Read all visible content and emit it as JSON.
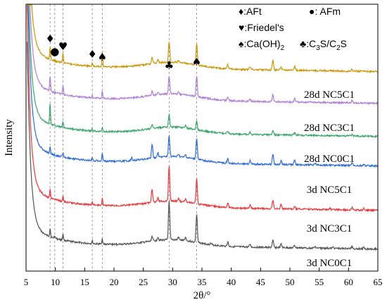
{
  "chart_data": {
    "type": "line",
    "xlabel": "2θ/°",
    "ylabel": "Intensity",
    "xlim": [
      5,
      65
    ],
    "xticks": [
      5,
      10,
      15,
      20,
      25,
      30,
      35,
      40,
      45,
      50,
      55,
      60,
      65
    ],
    "xtick_labels": [
      "5",
      "10",
      "15",
      "20",
      "25",
      "30",
      "35",
      "40",
      "45",
      "50",
      "55",
      "60",
      "65"
    ],
    "reference_lines": [
      9.1,
      9.9,
      11.3,
      16.3,
      18.0,
      29.4,
      34.1
    ],
    "legend": [
      {
        "symbol": "♦",
        "text": ":AFt"
      },
      {
        "symbol": "●",
        "text": ": AFm"
      },
      {
        "symbol": "♥",
        "text": ":Friedel's"
      },
      {
        "symbol": "♠",
        "text": ":Ca(OH)",
        "sub": "2"
      },
      {
        "symbol": "♣",
        "text_parts": [
          ":C",
          "3",
          "S/C",
          "2",
          "S"
        ]
      }
    ],
    "phase_markers": [
      {
        "symbol": "♦",
        "x": 9.1
      },
      {
        "symbol": "●",
        "x": 9.9
      },
      {
        "symbol": "♥",
        "x": 11.3
      },
      {
        "symbol": "♦",
        "x": 16.3
      },
      {
        "symbol": "♠",
        "x": 18.0
      },
      {
        "symbol": "♣",
        "x": 29.4
      },
      {
        "symbol": "♠",
        "x": 34.1
      }
    ],
    "series": [
      {
        "name": "3d NC0C1",
        "color": "#555555",
        "peaks": [
          [
            9.1,
            12
          ],
          [
            9.9,
            4
          ],
          [
            11.3,
            9
          ],
          [
            16.3,
            4
          ],
          [
            18.0,
            8
          ],
          [
            26.5,
            7
          ],
          [
            27.5,
            5
          ],
          [
            29.4,
            55
          ],
          [
            31.0,
            4
          ],
          [
            32.2,
            5
          ],
          [
            34.1,
            40
          ],
          [
            36.5,
            2
          ],
          [
            39.4,
            6
          ],
          [
            43.2,
            4
          ],
          [
            47.1,
            10
          ],
          [
            48.5,
            5
          ],
          [
            50.8,
            3
          ],
          [
            54.3,
            2
          ],
          [
            57.4,
            2
          ],
          [
            60.6,
            3
          ],
          [
            62.6,
            2
          ]
        ]
      },
      {
        "name": "3d NC3C1",
        "color": "#e8393d",
        "peaks": [
          [
            9.1,
            12
          ],
          [
            11.3,
            7
          ],
          [
            16.3,
            4
          ],
          [
            18.0,
            10
          ],
          [
            26.5,
            18
          ],
          [
            27.5,
            6
          ],
          [
            29.4,
            50
          ],
          [
            31.0,
            4
          ],
          [
            32.2,
            5
          ],
          [
            34.1,
            35
          ],
          [
            39.4,
            7
          ],
          [
            43.2,
            5
          ],
          [
            47.1,
            13
          ],
          [
            48.5,
            6
          ],
          [
            50.8,
            4
          ],
          [
            56.8,
            2
          ],
          [
            60.6,
            4
          ],
          [
            62.6,
            2
          ]
        ]
      },
      {
        "name": "3d NC5C1",
        "color": "#2f6bd6",
        "peaks": [
          [
            9.1,
            10
          ],
          [
            11.3,
            6
          ],
          [
            16.3,
            4
          ],
          [
            18.0,
            12
          ],
          [
            23.0,
            4
          ],
          [
            26.5,
            20
          ],
          [
            27.5,
            7
          ],
          [
            29.4,
            30
          ],
          [
            31.0,
            4
          ],
          [
            32.2,
            4
          ],
          [
            34.1,
            30
          ],
          [
            39.4,
            7
          ],
          [
            43.2,
            5
          ],
          [
            47.1,
            15
          ],
          [
            48.5,
            6
          ],
          [
            50.8,
            8
          ],
          [
            54.3,
            3
          ],
          [
            60.6,
            4
          ],
          [
            62.6,
            2
          ]
        ]
      },
      {
        "name": "28d NC0C1",
        "color": "#3aa66b",
        "peaks": [
          [
            9.1,
            30
          ],
          [
            11.3,
            8
          ],
          [
            16.3,
            3
          ],
          [
            18.0,
            6
          ],
          [
            26.5,
            5
          ],
          [
            29.4,
            18
          ],
          [
            32.2,
            4
          ],
          [
            34.1,
            12
          ],
          [
            39.4,
            4
          ],
          [
            43.2,
            3
          ],
          [
            47.1,
            6
          ],
          [
            50.8,
            3
          ],
          [
            60.6,
            2
          ]
        ]
      },
      {
        "name": "28d NC3C1",
        "color": "#b07fd6",
        "peaks": [
          [
            9.1,
            22
          ],
          [
            11.3,
            12
          ],
          [
            16.3,
            3
          ],
          [
            18.0,
            10
          ],
          [
            26.5,
            6
          ],
          [
            27.5,
            4
          ],
          [
            29.4,
            25
          ],
          [
            31.0,
            3
          ],
          [
            34.1,
            30
          ],
          [
            39.4,
            4
          ],
          [
            43.2,
            3
          ],
          [
            47.1,
            10
          ],
          [
            50.8,
            5
          ],
          [
            60.6,
            3
          ]
        ]
      },
      {
        "name": "28d NC5C1",
        "color": "#c9980a",
        "peaks": [
          [
            9.1,
            18
          ],
          [
            11.3,
            15
          ],
          [
            16.3,
            4
          ],
          [
            18.0,
            20
          ],
          [
            26.5,
            10
          ],
          [
            27.5,
            5
          ],
          [
            29.4,
            30
          ],
          [
            31.0,
            3
          ],
          [
            34.1,
            30
          ],
          [
            39.4,
            6
          ],
          [
            43.2,
            4
          ],
          [
            47.1,
            14
          ],
          [
            48.5,
            5
          ],
          [
            50.8,
            6
          ],
          [
            60.6,
            3
          ]
        ]
      }
    ]
  }
}
